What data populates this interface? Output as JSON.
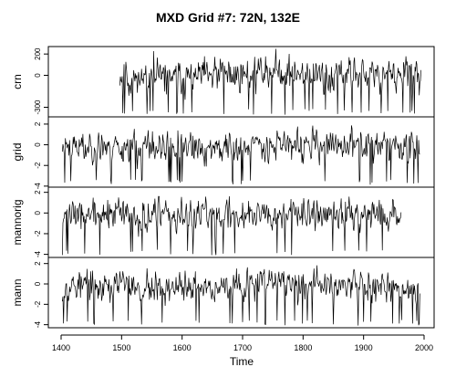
{
  "chart_data": {
    "type": "line",
    "title": "MXD Grid #7: 72N, 132E",
    "xlabel": "Time",
    "xlim": [
      1400,
      2000
    ],
    "x_ticks": [
      1400,
      1500,
      1600,
      1700,
      1800,
      1900,
      2000
    ],
    "x_tick_labels": [
      "1400",
      "1500",
      "1600",
      "1700",
      "1800",
      "1900",
      "2000"
    ],
    "panels": [
      {
        "name": "crn",
        "ylabel": "crn",
        "ylim": [
          -390,
          270
        ],
        "y_ticks": [
          200,
          0,
          -300
        ],
        "y_tick_labels": [
          "200",
          "0",
          "-300"
        ],
        "start": 1497,
        "end": 1995,
        "baseline": 0,
        "amplitude": 95,
        "trend": [
          [
            1497,
            0
          ],
          [
            1550,
            -15
          ],
          [
            1600,
            -25
          ],
          [
            1660,
            -5
          ],
          [
            1700,
            10
          ],
          [
            1750,
            40
          ],
          [
            1800,
            0
          ],
          [
            1850,
            -10
          ],
          [
            1900,
            5
          ],
          [
            1950,
            0
          ],
          [
            1995,
            -10
          ]
        ],
        "seed": 11
      },
      {
        "name": "grid",
        "ylabel": "grid",
        "ylim": [
          -4.1,
          2.7
        ],
        "y_ticks": [
          2,
          0,
          -2,
          -4
        ],
        "y_tick_labels": [
          "2",
          "0",
          "-2",
          "-4"
        ],
        "start": 1402,
        "end": 1993,
        "baseline": -0.2,
        "amplitude": 0.9,
        "trend": [
          [
            1402,
            0
          ],
          [
            1500,
            0.1
          ],
          [
            1600,
            -0.3
          ],
          [
            1700,
            0.1
          ],
          [
            1750,
            0.5
          ],
          [
            1800,
            0
          ],
          [
            1900,
            0.2
          ],
          [
            1993,
            -0.1
          ]
        ],
        "seed": 23
      },
      {
        "name": "mannorig",
        "ylabel": "mannorig",
        "ylim": [
          -4.3,
          2.5
        ],
        "y_ticks": [
          2,
          0,
          -2,
          -4
        ],
        "y_tick_labels": [
          "2",
          "0",
          "-2",
          "-4"
        ],
        "start": 1402,
        "end": 1962,
        "baseline": -0.2,
        "amplitude": 0.9,
        "trend": [
          [
            1402,
            0
          ],
          [
            1500,
            0.1
          ],
          [
            1600,
            -0.3
          ],
          [
            1700,
            0.1
          ],
          [
            1750,
            0.5
          ],
          [
            1800,
            0
          ],
          [
            1900,
            0.2
          ],
          [
            1962,
            0.1
          ]
        ],
        "seed": 37
      },
      {
        "name": "mann",
        "ylabel": "mann",
        "ylim": [
          -4.3,
          2.6
        ],
        "y_ticks": [
          2,
          0,
          -2,
          -4
        ],
        "y_tick_labels": [
          "2",
          "0",
          "-2",
          "-4"
        ],
        "start": 1402,
        "end": 1993,
        "baseline": -0.2,
        "amplitude": 0.9,
        "trend": [
          [
            1402,
            0
          ],
          [
            1500,
            0.1
          ],
          [
            1600,
            -0.3
          ],
          [
            1700,
            0.1
          ],
          [
            1750,
            0.5
          ],
          [
            1800,
            0
          ],
          [
            1900,
            0.2
          ],
          [
            1993,
            -0.3
          ]
        ],
        "seed": 53
      }
    ]
  }
}
